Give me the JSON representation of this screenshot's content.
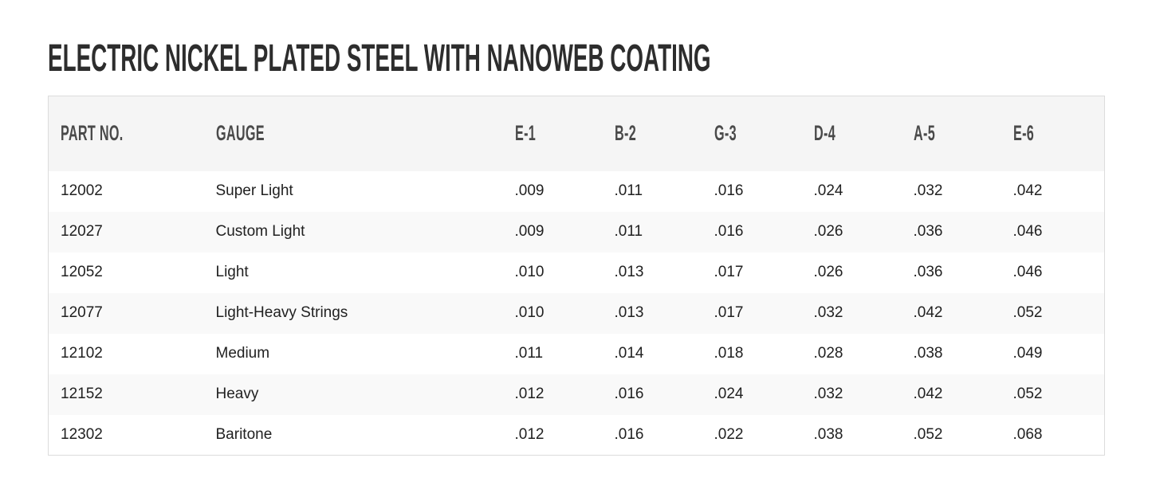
{
  "page": {
    "title": "ELECTRIC NICKEL PLATED STEEL WITH NANOWEB COATING"
  },
  "table": {
    "columns": [
      "PART NO.",
      "GAUGE",
      "E-1",
      "B-2",
      "G-3",
      "D-4",
      "A-5",
      "E-6"
    ],
    "rows": [
      [
        "12002",
        "Super Light",
        ".009",
        ".011",
        ".016",
        ".024",
        ".032",
        ".042"
      ],
      [
        "12027",
        "Custom Light",
        ".009",
        ".011",
        ".016",
        ".026",
        ".036",
        ".046"
      ],
      [
        "12052",
        "Light",
        ".010",
        ".013",
        ".017",
        ".026",
        ".036",
        ".046"
      ],
      [
        "12077",
        "Light-Heavy Strings",
        ".010",
        ".013",
        ".017",
        ".032",
        ".042",
        ".052"
      ],
      [
        "12102",
        "Medium",
        ".011",
        ".014",
        ".018",
        ".028",
        ".038",
        ".049"
      ],
      [
        "12152",
        "Heavy",
        ".012",
        ".016",
        ".024",
        ".032",
        ".042",
        ".052"
      ],
      [
        "12302",
        "Baritone",
        ".012",
        ".016",
        ".022",
        ".038",
        ".052",
        ".068"
      ]
    ]
  },
  "colors": {
    "title_text": "#2d2d2d",
    "header_bg": "#f5f5f5",
    "header_text": "#4a4a4a",
    "row_alt_bg": "#f9f9f9",
    "body_text": "#212121",
    "table_border": "#dcdcdc",
    "page_bg": "#ffffff"
  }
}
